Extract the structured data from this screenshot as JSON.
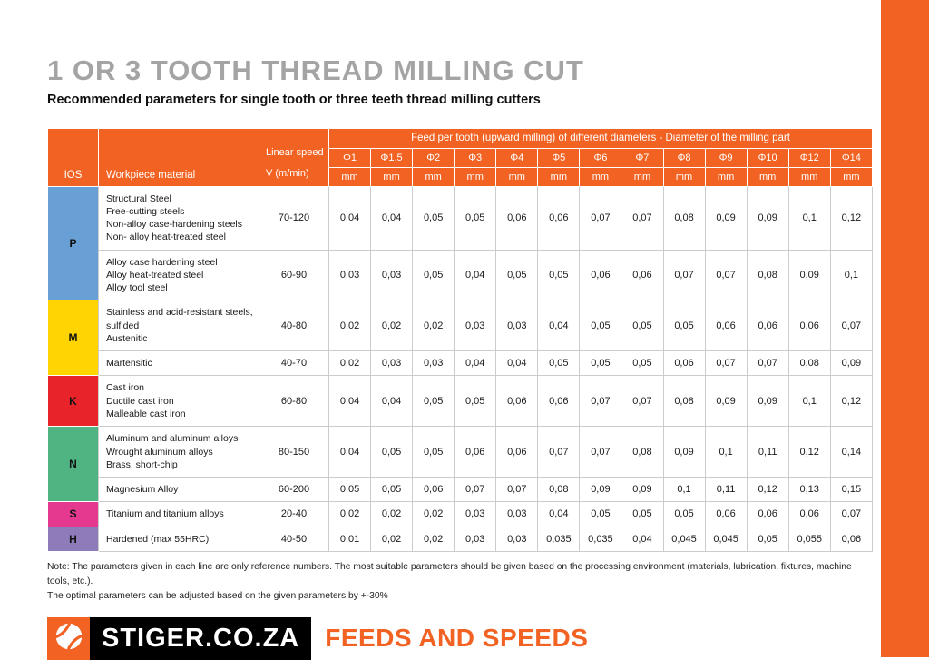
{
  "page": {
    "title": "1 OR 3 TOOTH THREAD MILLING CUT",
    "subtitle": "Recommended parameters for single tooth or three teeth thread milling cutters",
    "note_line1": "Note: The parameters given in each line are only reference numbers. The most suitable parameters should be given based on the processing environment (materials, lubrication, fixtures, machine tools, etc.).",
    "note_line2": "The optimal parameters can be adjusted based on the given parameters by +-30%"
  },
  "colors": {
    "accent_orange": "#F26222",
    "title_gray": "#A4A4A4",
    "iso_p_blue": "#68A0D6",
    "iso_m_yellow": "#FFD400",
    "iso_k_red": "#E8232A",
    "iso_n_green": "#4FB382",
    "iso_s_pink": "#E53990",
    "iso_h_purple": "#8E7CBA"
  },
  "table": {
    "headers": {
      "iso": "IOS",
      "material": "Workpiece material",
      "speed_label": "Linear speed",
      "speed_unit": "V (m/min)",
      "feed_banner": "Feed per tooth (upward milling) of different diameters - Diameter of the milling part",
      "unit": "mm"
    },
    "diameters": [
      "Φ1",
      "Φ1.5",
      "Φ2",
      "Φ3",
      "Φ4",
      "Φ5",
      "Φ6",
      "Φ7",
      "Φ8",
      "Φ9",
      "Φ10",
      "Φ12",
      "Φ14"
    ],
    "groups": [
      {
        "iso": "P",
        "color": "#68A0D6",
        "rows": [
          {
            "materials": [
              "Structural Steel",
              "Free-cutting steels",
              "Non-alloy case-hardening steels",
              "Non- alloy heat-treated steel"
            ],
            "speed": "70-120",
            "values": [
              "0,04",
              "0,04",
              "0,05",
              "0,05",
              "0,06",
              "0,06",
              "0,07",
              "0,07",
              "0,08",
              "0,09",
              "0,09",
              "0,1",
              "0,12"
            ]
          },
          {
            "materials": [
              "Alloy case hardening steel",
              "Alloy heat-treated steel",
              "Alloy tool steel"
            ],
            "speed": "60-90",
            "values": [
              "0,03",
              "0,03",
              "0,05",
              "0,04",
              "0,05",
              "0,05",
              "0,06",
              "0,06",
              "0,07",
              "0,07",
              "0,08",
              "0,09",
              "0,1"
            ]
          }
        ]
      },
      {
        "iso": "M",
        "color": "#FFD400",
        "rows": [
          {
            "materials": [
              "Stainless and acid-resistant steels, sulfided",
              "Austenitic"
            ],
            "speed": "40-80",
            "values": [
              "0,02",
              "0,02",
              "0,02",
              "0,03",
              "0,03",
              "0,04",
              "0,05",
              "0,05",
              "0,05",
              "0,06",
              "0,06",
              "0,06",
              "0,07"
            ]
          },
          {
            "materials": [
              "Martensitic"
            ],
            "speed": "40-70",
            "values": [
              "0,02",
              "0,03",
              "0,03",
              "0,04",
              "0,04",
              "0,05",
              "0,05",
              "0,05",
              "0,06",
              "0,07",
              "0,07",
              "0,08",
              "0,09"
            ]
          }
        ]
      },
      {
        "iso": "K",
        "color": "#E8232A",
        "rows": [
          {
            "materials": [
              "Cast iron",
              "Ductile cast iron",
              "Malleable cast iron"
            ],
            "speed": "60-80",
            "values": [
              "0,04",
              "0,04",
              "0,05",
              "0,05",
              "0,06",
              "0,06",
              "0,07",
              "0,07",
              "0,08",
              "0,09",
              "0,09",
              "0,1",
              "0,12"
            ]
          }
        ]
      },
      {
        "iso": "N",
        "color": "#4FB382",
        "rows": [
          {
            "materials": [
              "Aluminum and aluminum alloys",
              "Wrought aluminum alloys",
              "Brass, short-chip"
            ],
            "speed": "80-150",
            "values": [
              "0,04",
              "0,05",
              "0,05",
              "0,06",
              "0,06",
              "0,07",
              "0,07",
              "0,08",
              "0,09",
              "0,1",
              "0,11",
              "0,12",
              "0,14"
            ]
          },
          {
            "materials": [
              "Magnesium Alloy"
            ],
            "speed": "60-200",
            "values": [
              "0,05",
              "0,05",
              "0,06",
              "0,07",
              "0,07",
              "0,08",
              "0,09",
              "0,09",
              "0,1",
              "0,11",
              "0,12",
              "0,13",
              "0,15"
            ]
          }
        ]
      },
      {
        "iso": "S",
        "color": "#E53990",
        "rows": [
          {
            "materials": [
              "Titanium and titanium alloys"
            ],
            "speed": "20-40",
            "values": [
              "0,02",
              "0,02",
              "0,02",
              "0,03",
              "0,03",
              "0,04",
              "0,05",
              "0,05",
              "0,05",
              "0,06",
              "0,06",
              "0,06",
              "0,07"
            ]
          }
        ]
      },
      {
        "iso": "H",
        "color": "#8E7CBA",
        "rows": [
          {
            "materials": [
              "Hardened (max 55HRC)"
            ],
            "speed": "40-50",
            "values": [
              "0,01",
              "0,02",
              "0,02",
              "0,03",
              "0,03",
              "0,035",
              "0,035",
              "0,04",
              "0,045",
              "0,045",
              "0,05",
              "0,055",
              "0,06"
            ]
          }
        ]
      }
    ]
  },
  "footer": {
    "brand": "STIGER.CO.ZA",
    "tagline": "FEEDS AND SPEEDS",
    "logo_icon": "stiger-swirl-icon"
  }
}
